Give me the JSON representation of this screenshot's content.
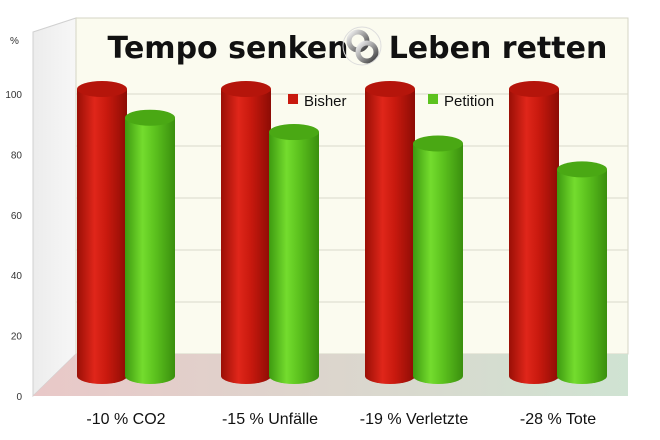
{
  "chart_data": {
    "type": "bar",
    "title_left": "Tempo senken",
    "title_right": "Leben retten",
    "ylabel": "%",
    "ylim": [
      0,
      100
    ],
    "yticks": [
      0,
      20,
      40,
      60,
      80,
      100
    ],
    "categories": [
      "-10 % CO2",
      "-15 % Unfälle",
      "-19 % Verletzte",
      "-28 % Tote"
    ],
    "series": [
      {
        "name": "Bisher",
        "color": "#c8190e",
        "values": [
          100,
          100,
          100,
          100
        ]
      },
      {
        "name": "Petition",
        "color": "#5cc21e",
        "values": [
          90,
          85,
          81,
          72
        ]
      }
    ],
    "grid": true,
    "legend_position": "top-right",
    "title_icon": "linked-rings-icon"
  }
}
